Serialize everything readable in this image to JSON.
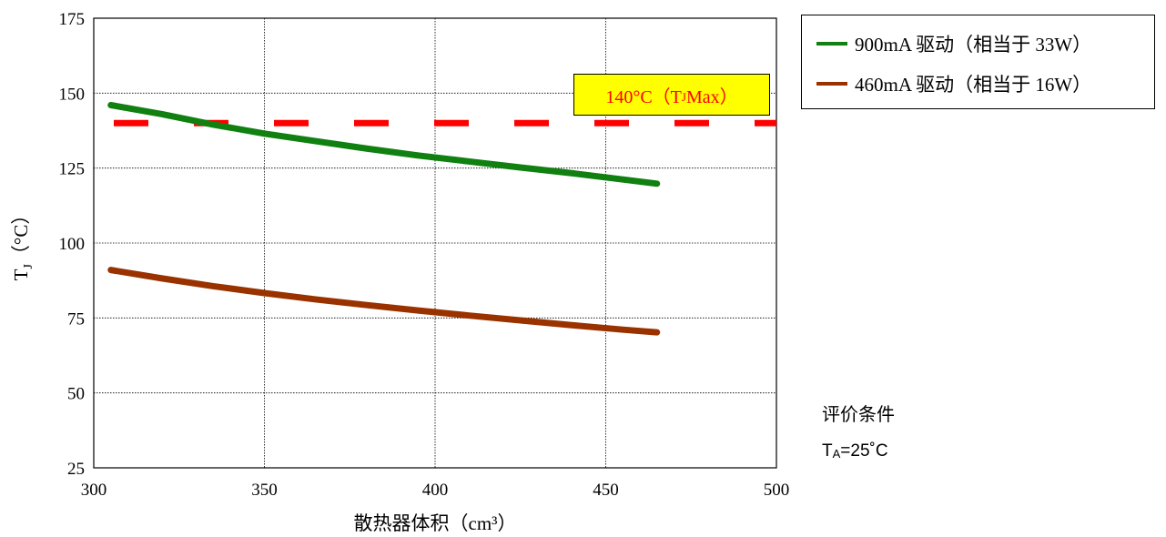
{
  "chart_data": {
    "type": "line",
    "xlabel": "散热器体积（cm³）",
    "ylabel": "T",
    "ylabel_sub": "J",
    "ylabel_unit": "（°C）",
    "xlim": [
      300,
      500
    ],
    "ylim": [
      25,
      175
    ],
    "x_ticks": [
      300,
      350,
      400,
      450,
      500
    ],
    "y_ticks": [
      25,
      50,
      75,
      100,
      125,
      150,
      175
    ],
    "grid": true,
    "legend_position": "top-right outside",
    "series": [
      {
        "name": "900mA 驱动（相当于 33W）",
        "color": "#108010",
        "x": [
          305,
          320,
          335,
          350,
          365,
          380,
          395,
          410,
          425,
          440,
          455,
          465
        ],
        "y": [
          146,
          143,
          139.5,
          136.5,
          134,
          131.5,
          129.2,
          127.2,
          125.2,
          123.3,
          121.2,
          119.8
        ]
      },
      {
        "name": "460mA 驱动（相当于 16W）",
        "color": "#9a3200",
        "x": [
          305,
          320,
          335,
          350,
          365,
          380,
          395,
          410,
          425,
          440,
          455,
          465
        ],
        "y": [
          91,
          88.2,
          85.6,
          83.3,
          81.2,
          79.3,
          77.5,
          75.8,
          74.2,
          72.6,
          71.1,
          70.2
        ]
      }
    ],
    "reference_line": {
      "value": 140,
      "color": "#ff0000",
      "style": "dashed",
      "label_text": "140°C（T",
      "label_sub": "J",
      "label_suffix": " Max）",
      "label_bg": "#ffff00"
    },
    "annotation": {
      "title": "评价条件",
      "condition_prefix": "T",
      "condition_sub": "A",
      "condition_suffix": "=25˚C"
    }
  }
}
